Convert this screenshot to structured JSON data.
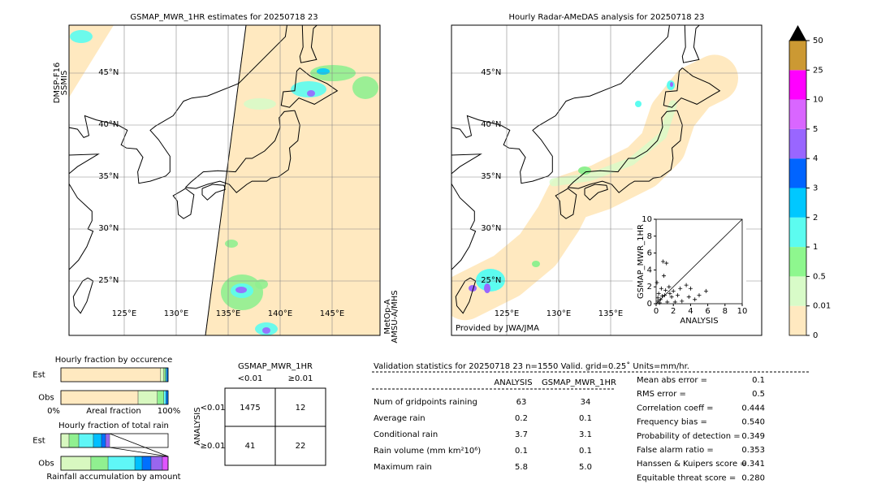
{
  "maps": [
    {
      "title": "GSMAP_MWR_1HR estimates for 20250718 23",
      "lat_ticks": [
        {
          "value": 45,
          "label": "45°N"
        },
        {
          "value": 40,
          "label": "40°N"
        },
        {
          "value": 35,
          "label": "35°N"
        },
        {
          "value": 30,
          "label": "30°N"
        },
        {
          "value": 25,
          "label": "25°N"
        }
      ],
      "lon_ticks": [
        {
          "value": 125,
          "label": "125°E"
        },
        {
          "value": 130,
          "label": "130°E"
        },
        {
          "value": 135,
          "label": "135°E"
        },
        {
          "value": 140,
          "label": "140°E"
        },
        {
          "value": 145,
          "label": "145°E"
        }
      ],
      "left_note": [
        "DMSP-F16",
        "SSMIS"
      ],
      "right_note": [
        "MetOp-A",
        "AMSU-A/MHS"
      ]
    },
    {
      "title": "Hourly Radar-AMeDAS analysis for 20250718 23",
      "lat_ticks": [
        {
          "value": 45,
          "label": "45°N"
        },
        {
          "value": 40,
          "label": "40°N"
        },
        {
          "value": 35,
          "label": "35°N"
        },
        {
          "value": 30,
          "label": "30°N"
        },
        {
          "value": 25,
          "label": "25°N"
        }
      ],
      "lon_ticks": [
        {
          "value": 125,
          "label": "125°E"
        },
        {
          "value": 130,
          "label": "130°E"
        },
        {
          "value": 135,
          "label": "135°E"
        }
      ],
      "credit": "Provided by JWA/JMA"
    }
  ],
  "chart_data": [
    {
      "type": "colorbar",
      "boundaries": [
        0,
        0.01,
        0.5,
        1,
        2,
        3,
        4,
        5,
        10,
        25,
        50
      ],
      "colors": [
        "#ffe9c0",
        "#d8fbc8",
        "#8ef78e",
        "#5cfcf0",
        "#00c8ff",
        "#0064ff",
        "#9966ff",
        "#d966ff",
        "#ff00ff",
        "#cc9933"
      ]
    },
    {
      "type": "scatter",
      "xlabel": "ANALYSIS",
      "ylabel": "GSMAP_MWR_1HR",
      "xlim": [
        0,
        10
      ],
      "ylim": [
        0,
        10
      ],
      "xticks": [
        0,
        2,
        4,
        6,
        8,
        10
      ],
      "yticks": [
        0,
        2,
        4,
        6,
        8,
        10
      ],
      "x": [
        0.8,
        1.2,
        0.9,
        1.5,
        2.0,
        3.5,
        4.0,
        5.8,
        4.5,
        3.0,
        2.5,
        1.0,
        0.5,
        0.3,
        0.2,
        1.8,
        0.6,
        1.3,
        0.4,
        2.2,
        3.8,
        5.0,
        0.1,
        1.1,
        0.7,
        1.6,
        0.2,
        2.8
      ],
      "y": [
        5.0,
        4.8,
        3.3,
        2.0,
        1.5,
        2.2,
        1.8,
        1.5,
        0.5,
        0.3,
        1.0,
        1.0,
        0.5,
        1.2,
        0.3,
        0.8,
        1.8,
        0.2,
        0.1,
        0.2,
        0.8,
        1.0,
        2.5,
        1.6,
        0.9,
        1.2,
        0.7,
        1.8
      ]
    },
    {
      "type": "stacked-hbar",
      "title": "Hourly fraction by occurence",
      "xlabel": "Areal fraction",
      "categories": [
        "Est",
        "Obs"
      ],
      "xlim": [
        0,
        1
      ],
      "xticks": [
        {
          "value": 0,
          "label": "0%"
        },
        {
          "value": 1,
          "label": "100%"
        }
      ],
      "colors": [
        "#ffe9c0",
        "#d8f8c0",
        "#90f090",
        "#5ff7f7",
        "#0080ff"
      ],
      "values": [
        [
          0.93,
          0.03,
          0.015,
          0.01,
          0.015
        ],
        [
          0.72,
          0.18,
          0.06,
          0.02,
          0.02
        ]
      ]
    },
    {
      "type": "stacked-hbar",
      "title": "Hourly fraction of total rain",
      "xlabel": "Rainfall accumulation by amount",
      "categories": [
        "Est",
        "Obs"
      ],
      "xlim": [
        0,
        1
      ],
      "colors": [
        "#d8f8c0",
        "#90f090",
        "#5ff7f7",
        "#00bfff",
        "#0070ff",
        "#9966ee",
        "#e055ff"
      ],
      "values": [
        [
          0.076,
          0.091,
          0.136,
          0.076,
          0.038,
          0.038
        ],
        [
          0.28,
          0.16,
          0.25,
          0.068,
          0.083,
          0.106,
          0.053
        ]
      ]
    }
  ],
  "contingency": {
    "title": "GSMAP_MWR_1HR",
    "columns": [
      "<0.01",
      "≥0.01"
    ],
    "row_axis": "ANALYSIS",
    "rows": [
      "<0.01",
      "≥0.01"
    ],
    "cells": [
      [
        "1475",
        "12"
      ],
      [
        "41",
        "22"
      ]
    ]
  },
  "validation": {
    "title": "Validation statistics for 20250718 23  n=1550 Valid. grid=0.25˚ Units=mm/hr.",
    "columns": [
      "ANALYSIS",
      "GSMAP_MWR_1HR"
    ],
    "rows": [
      {
        "label": "Num of gridpoints raining",
        "values": [
          "63",
          "34"
        ]
      },
      {
        "label": "Average rain",
        "values": [
          "0.2",
          "0.1"
        ]
      },
      {
        "label": "Conditional rain",
        "values": [
          "3.7",
          "3.1"
        ]
      },
      {
        "label": "Rain volume (mm km²10⁶)",
        "values": [
          "0.1",
          "0.1"
        ]
      },
      {
        "label": "Maximum rain",
        "values": [
          "5.8",
          "5.0"
        ]
      }
    ],
    "scores": [
      {
        "label": "Mean abs error =",
        "value": "0.1"
      },
      {
        "label": "RMS error =",
        "value": "0.5"
      },
      {
        "label": "Correlation coeff =",
        "value": "0.444"
      },
      {
        "label": "Frequency bias =",
        "value": "0.540"
      },
      {
        "label": "Probability of detection =",
        "value": "0.349"
      },
      {
        "label": "False alarm ratio =",
        "value": "0.353"
      },
      {
        "label": "Hanssen & Kuipers score =",
        "value": "0.341"
      },
      {
        "label": "Equitable threat score =",
        "value": "0.280"
      }
    ]
  }
}
